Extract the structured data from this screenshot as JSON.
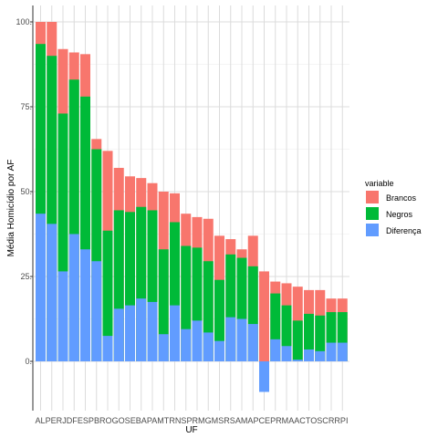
{
  "chart_data": {
    "type": "bar",
    "title": "",
    "xlabel": "UF",
    "ylabel": "Média Homicídio por AF",
    "ylim": [
      -10,
      102
    ],
    "yticks": [
      0,
      25,
      50,
      75,
      100
    ],
    "ytick_labels": [
      "0.",
      "25.",
      "50.",
      "75.",
      "100."
    ],
    "grid": true,
    "legend": {
      "title": "variable",
      "position": "right",
      "entries": [
        "Brancos",
        "Negros",
        "Diferença"
      ]
    },
    "categories": [
      "AL",
      "PE",
      "RJ",
      "DF",
      "ES",
      "PB",
      "RO",
      "GO",
      "SE",
      "BA",
      "PA",
      "MT",
      "RN",
      "SP",
      "RR",
      "MG",
      "MS",
      "RS",
      "AM",
      "AP",
      "CE",
      "PR",
      "MA",
      "AC",
      "TO",
      "SC",
      "RR",
      "PI"
    ],
    "xtick_text": "ALPERJDFESPBROGOSEBAPAMTRNSPRMGMSRSAMAPCEPRMAACTOSCRRPI",
    "series": [
      {
        "name": "Brancos",
        "color": "#F8766D",
        "values": [
          100,
          100,
          92,
          91,
          90.5,
          65.5,
          62,
          57,
          54.5,
          54,
          52.5,
          50,
          49.5,
          43.5,
          42.5,
          42,
          37,
          36,
          33,
          37,
          26.5,
          23.5,
          23,
          22,
          21,
          21,
          18.5,
          18.5
        ]
      },
      {
        "name": "Negros",
        "color": "#00BA38",
        "values": [
          93.5,
          90,
          73,
          83,
          78,
          62.5,
          38.5,
          44.5,
          44,
          45.5,
          44.5,
          33,
          41,
          34,
          33.5,
          29.5,
          24,
          31.5,
          30.5,
          28,
          0,
          20,
          16.5,
          12,
          14,
          13.5,
          14.5,
          14.5
        ]
      },
      {
        "name": "Diferença",
        "color": "#619CFF",
        "values": [
          43.5,
          40.5,
          26.5,
          37.5,
          33,
          29.5,
          7.5,
          15.5,
          16.5,
          18.5,
          17.5,
          8,
          16.5,
          9.5,
          12,
          8.5,
          6,
          13,
          12.5,
          11,
          -9,
          6.5,
          4.5,
          0.5,
          3.5,
          3,
          5.5,
          5.5
        ]
      }
    ]
  }
}
